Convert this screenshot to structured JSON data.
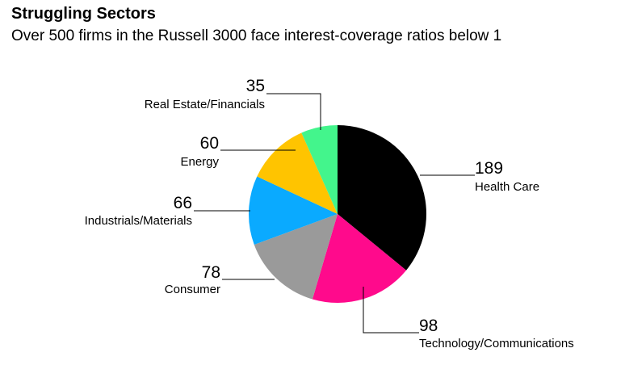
{
  "chart_data": {
    "type": "pie",
    "title": "Struggling Sectors",
    "subtitle": "Over 500 firms in the Russell 3000 face interest-coverage ratios below 1",
    "categories": [
      "Health Care",
      "Technology/Communications",
      "Consumer",
      "Industrials/Materials",
      "Energy",
      "Real Estate/Financials"
    ],
    "values": [
      189,
      98,
      78,
      66,
      60,
      35
    ],
    "colors": [
      "#000000",
      "#ff0a8c",
      "#9a9a9a",
      "#0aaaff",
      "#ffc400",
      "#43f58c"
    ]
  }
}
